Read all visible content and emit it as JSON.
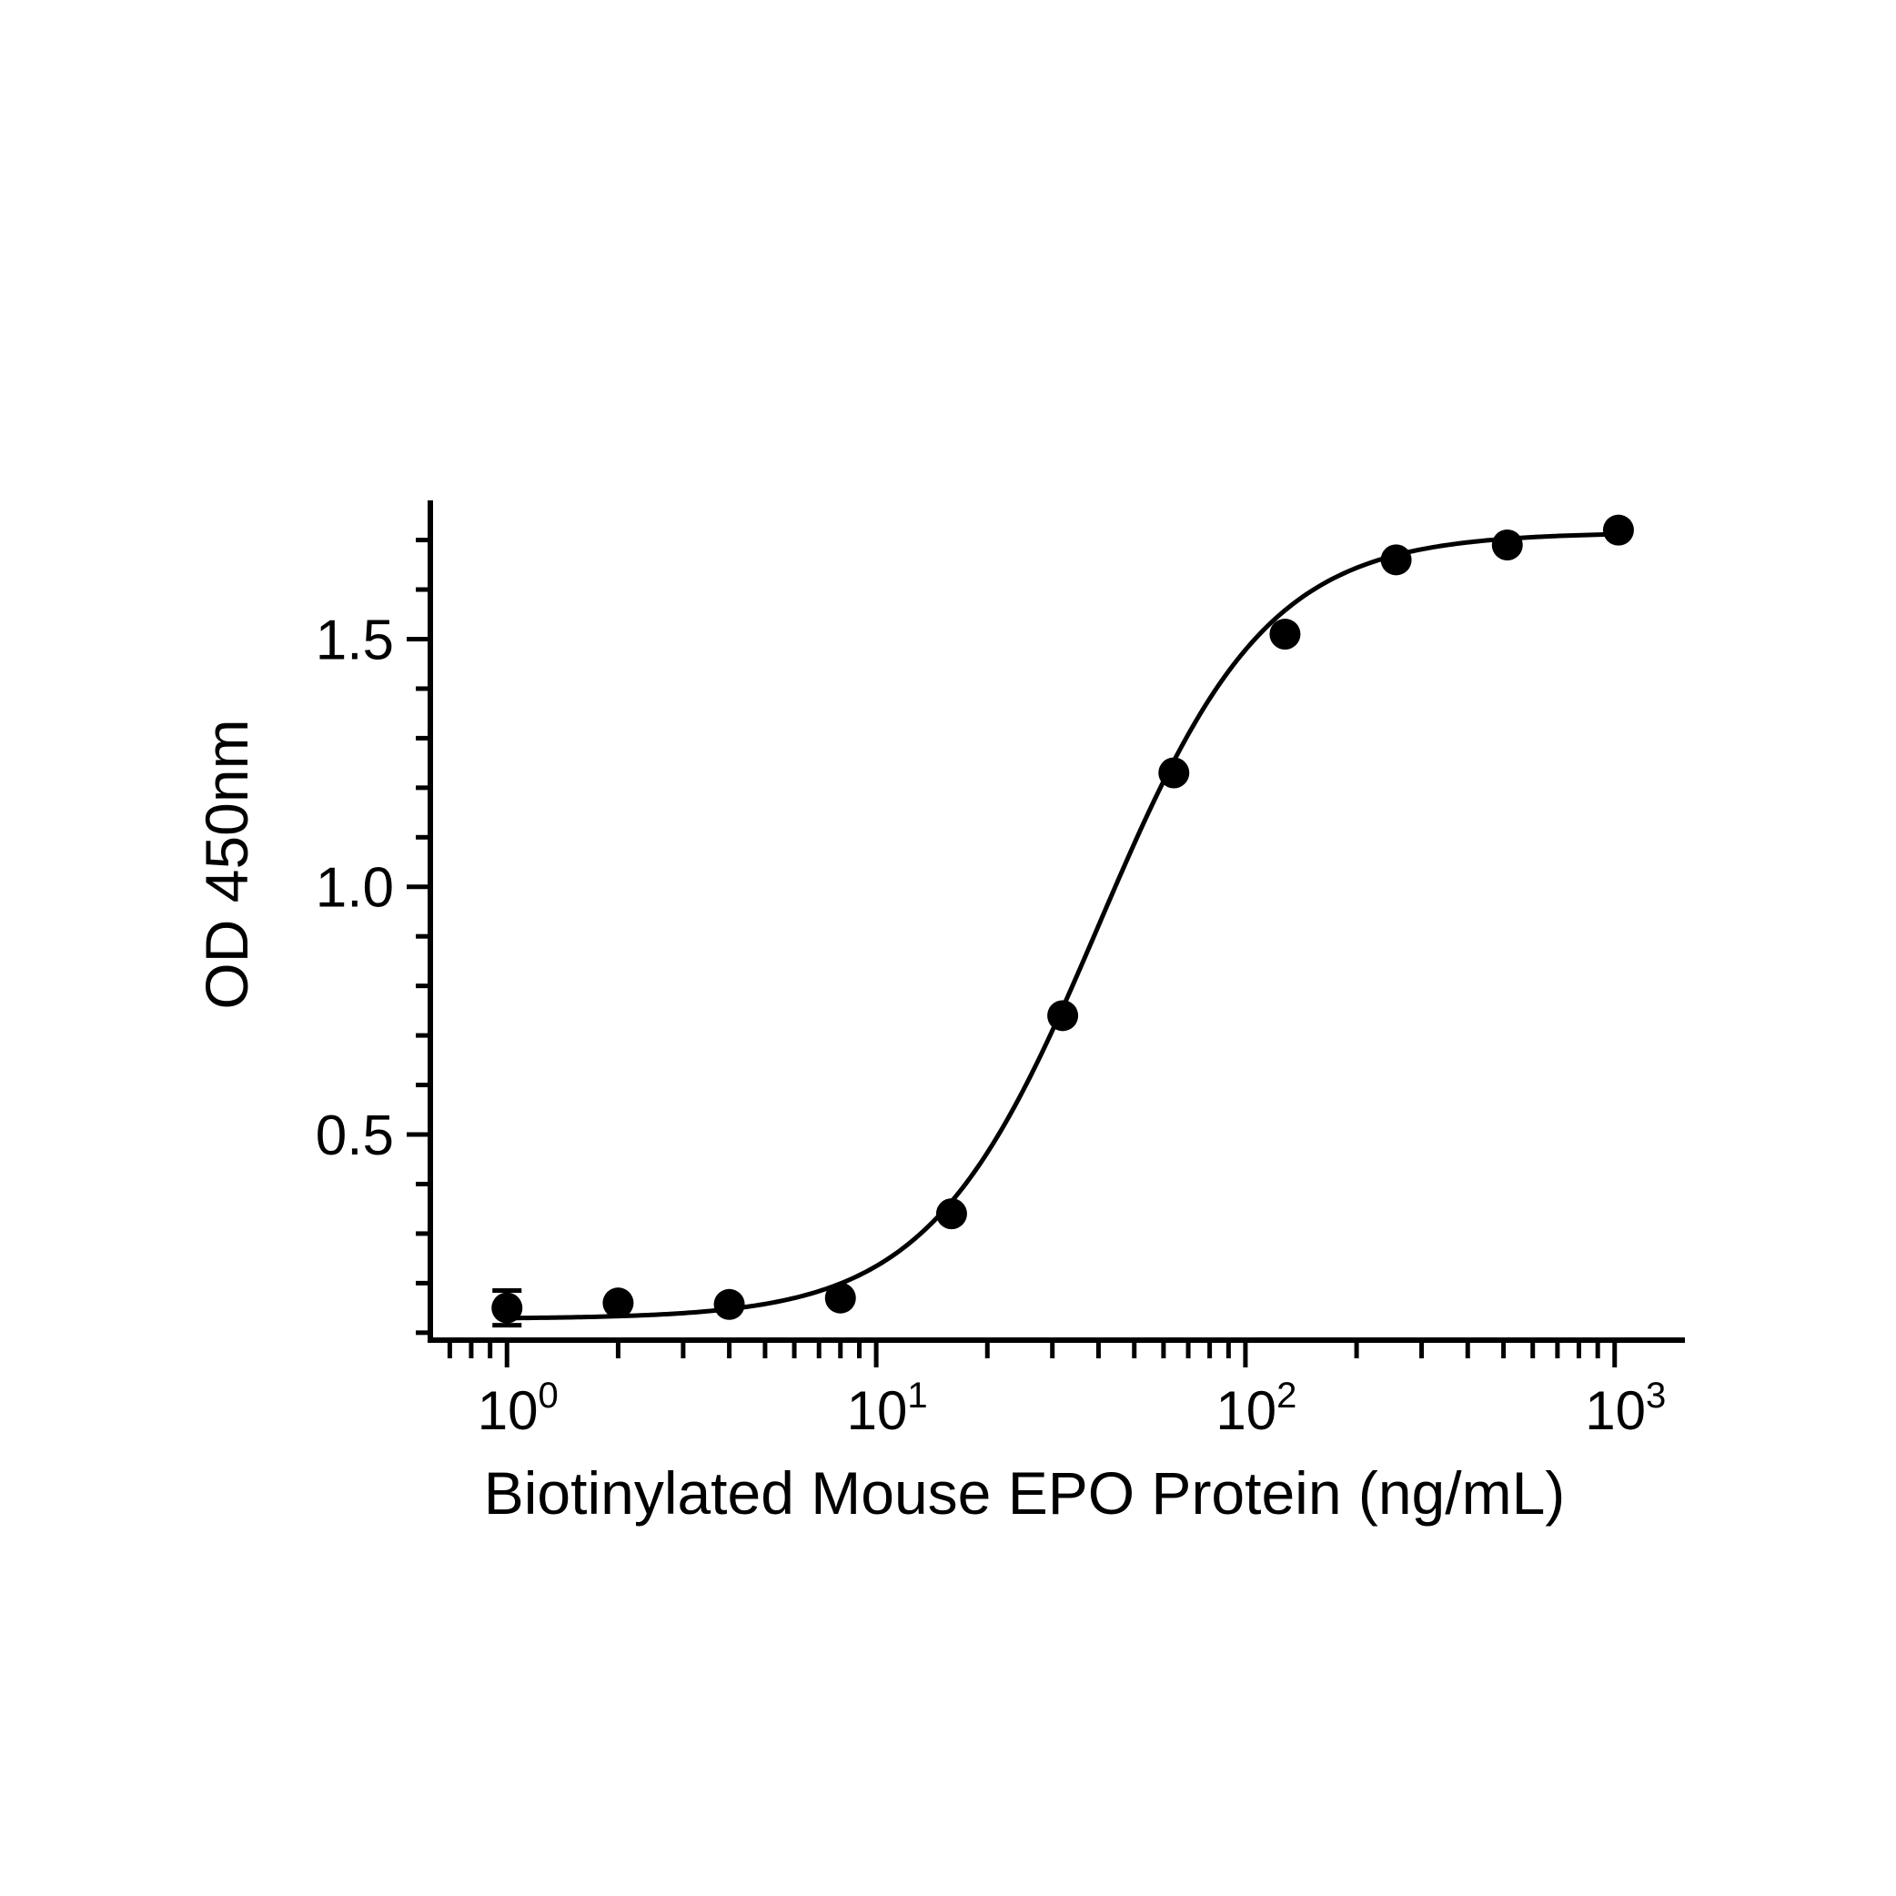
{
  "chart_data": {
    "type": "scatter",
    "title": "",
    "xlabel": "Biotinylated Mouse EPO Protein (ng/mL)",
    "ylabel": "OD 450nm",
    "x_scale": "log10",
    "xlim": [
      0.62,
      1550
    ],
    "ylim": [
      0.085,
      1.78
    ],
    "x_ticks": [
      {
        "value": 1,
        "base": "10",
        "exp": "0"
      },
      {
        "value": 10,
        "base": "10",
        "exp": "1"
      },
      {
        "value": 100,
        "base": "10",
        "exp": "2"
      },
      {
        "value": 1000,
        "base": "10",
        "exp": "3"
      }
    ],
    "y_ticks": [
      {
        "value": 0.5,
        "label": "0.5"
      },
      {
        "value": 1.0,
        "label": "1.0"
      },
      {
        "value": 1.5,
        "label": "1.5"
      }
    ],
    "y_minor_step": 0.1,
    "grid": false,
    "legend": "none",
    "color": "#000000",
    "series": [
      {
        "x": [
          1,
          2,
          4,
          8,
          16,
          32,
          64,
          128,
          256,
          512,
          1024
        ],
        "y": [
          0.15,
          0.16,
          0.157,
          0.17,
          0.34,
          0.74,
          1.23,
          1.51,
          1.66,
          1.69,
          1.72
        ],
        "error": [
          0.035,
          0,
          0,
          0,
          0,
          0,
          0,
          0,
          0,
          0,
          0
        ]
      }
    ],
    "fit": {
      "model": "4PL",
      "bottom": 0.128,
      "top": 1.715,
      "ec50": 40,
      "hill": 1.9
    }
  }
}
